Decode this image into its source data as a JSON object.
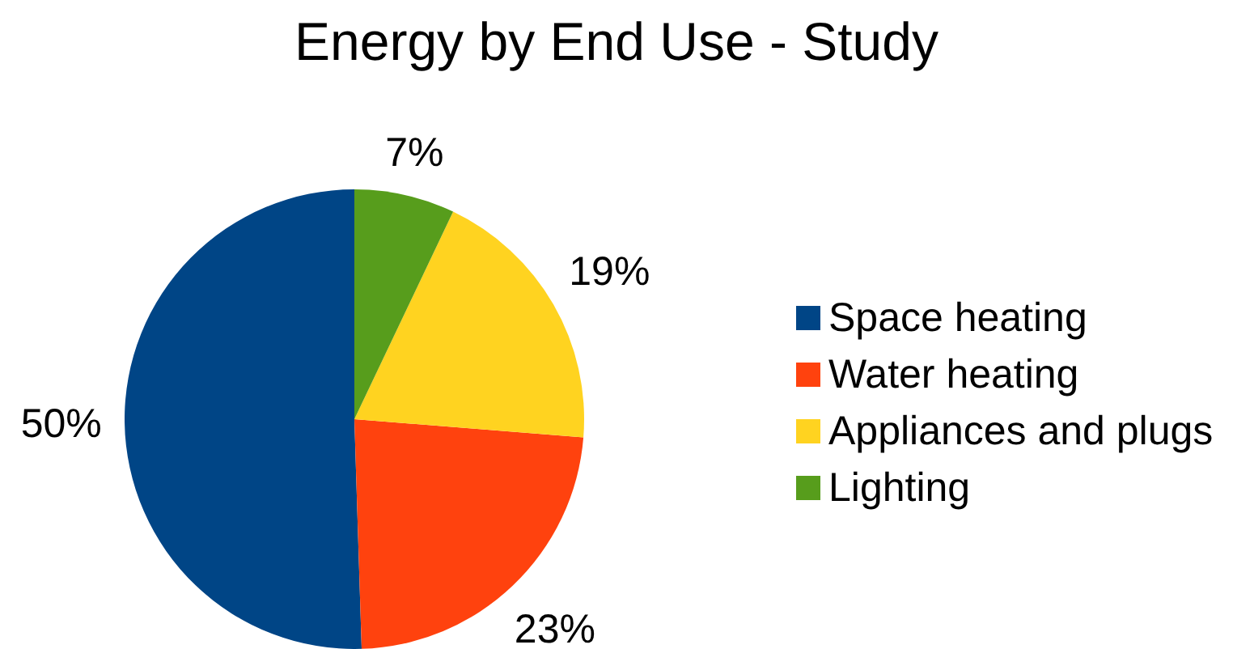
{
  "chart_data": {
    "type": "pie",
    "title": "Energy by End Use - Study",
    "categories": [
      "Space heating",
      "Water heating",
      "Appliances and plugs",
      "Lighting"
    ],
    "values": [
      50,
      23,
      19,
      7
    ],
    "colors": [
      "#004586",
      "#ff420e",
      "#ffd320",
      "#579d1c"
    ],
    "value_labels": [
      "50%",
      "23%",
      "19%",
      "7%"
    ],
    "legend": "right"
  }
}
